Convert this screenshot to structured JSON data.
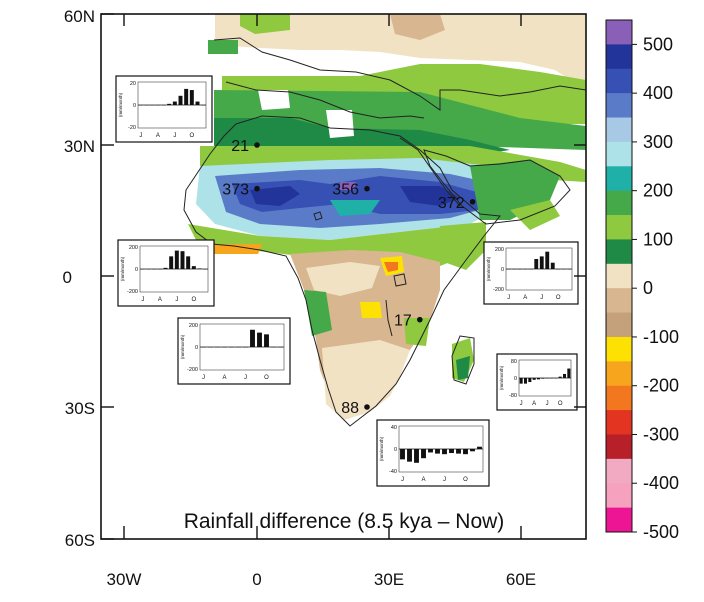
{
  "figure": {
    "title": "Rainfall difference (8.5 kya – Now)",
    "lat_labels": [
      "60N",
      "30N",
      "0",
      "30S",
      "60S"
    ],
    "lon_labels": [
      "30W",
      "0",
      "30E",
      "60E"
    ],
    "colorbar_labels": [
      "500",
      "400",
      "300",
      "200",
      "100",
      "0",
      "-100",
      "-200",
      "-300",
      "-400",
      "-500"
    ],
    "colorbar_colors": [
      "#8a5fb8",
      "#22349a",
      "#3650b4",
      "#5a7cc8",
      "#a7c9e6",
      "#ade2e8",
      "#1fb0a8",
      "#45a94a",
      "#8fc93f",
      "#1f8a46",
      "#f1e2c3",
      "#d8b68f",
      "#c4a07b",
      "#fde103",
      "#f7a51c",
      "#f3771e",
      "#e33421",
      "#b82029",
      "#f2aac3",
      "#f6a1bd",
      "#ee1594"
    ],
    "sites": [
      {
        "name": "site-west-sahara",
        "value": "21",
        "lon": 0,
        "lat": 30
      },
      {
        "name": "site-sahel-west",
        "value": "373",
        "lon": 0,
        "lat": 20
      },
      {
        "name": "site-sahel-east",
        "value": "356",
        "lon": 25,
        "lat": 20
      },
      {
        "name": "site-arabia",
        "value": "372",
        "lon": 49,
        "lat": 17
      },
      {
        "name": "site-east-africa",
        "value": "17",
        "lon": 37,
        "lat": -10
      },
      {
        "name": "site-south-africa",
        "value": "88",
        "lon": 25,
        "lat": -30
      }
    ],
    "insets": [
      {
        "name": "inset-north-africa",
        "yticks": [
          "20",
          "0",
          "-20"
        ],
        "ylabel": "(mm/month)",
        "xticks": [
          "J",
          "A",
          "J",
          "O"
        ],
        "anomaly_max": 20,
        "values": [
          0,
          0,
          0,
          0,
          0,
          1,
          3,
          8,
          14,
          13,
          3,
          0
        ]
      },
      {
        "name": "inset-west-africa",
        "yticks": [
          "200",
          "0",
          "-200"
        ],
        "ylabel": "(mm/month)",
        "xticks": [
          "J",
          "A",
          "J",
          "O"
        ],
        "anomaly_max": 200,
        "values": [
          0,
          0,
          0,
          0,
          10,
          110,
          160,
          155,
          110,
          25,
          5,
          0
        ]
      },
      {
        "name": "inset-central-africa",
        "yticks": [
          "200",
          "0",
          "-200"
        ],
        "ylabel": "(mm/month)",
        "xticks": [
          "J",
          "A",
          "J",
          "O"
        ],
        "anomaly_max": 200,
        "values": [
          0,
          0,
          0,
          0,
          0,
          0,
          0,
          150,
          125,
          110,
          0,
          0
        ]
      },
      {
        "name": "inset-arabia",
        "yticks": [
          "200",
          "0",
          "-200"
        ],
        "ylabel": "(mm/month)",
        "xticks": [
          "J",
          "A",
          "J",
          "O"
        ],
        "anomaly_max": 200,
        "values": [
          0,
          0,
          0,
          0,
          0,
          95,
          120,
          165,
          60,
          0,
          0,
          0
        ]
      },
      {
        "name": "inset-madagascar",
        "yticks": [
          "80",
          "0",
          "-80"
        ],
        "ylabel": "(mm/month)",
        "xticks": [
          "J",
          "A",
          "J",
          "O"
        ],
        "anomaly_max": 80,
        "values": [
          -25,
          -25,
          -18,
          -8,
          -6,
          -3,
          -2,
          -1,
          0,
          6,
          18,
          42
        ]
      },
      {
        "name": "inset-south-africa",
        "yticks": [
          "40",
          "0",
          "-40"
        ],
        "ylabel": "(mm/month)",
        "xticks": [
          "J",
          "A",
          "J",
          "O"
        ],
        "anomaly_max": 40,
        "values": [
          -18,
          -22,
          -24,
          -16,
          -6,
          -8,
          -9,
          -7,
          -8,
          -9,
          -4,
          4
        ]
      }
    ]
  }
}
